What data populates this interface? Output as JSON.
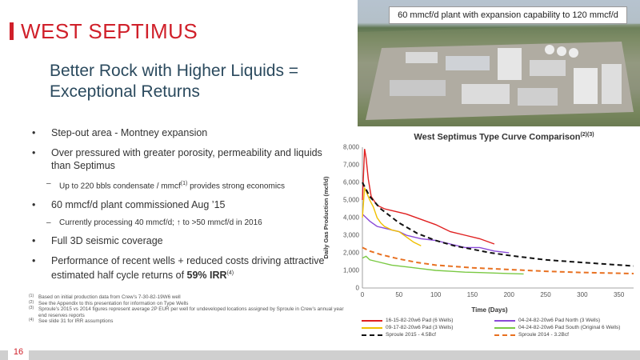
{
  "slide": {
    "title": "WEST SEPTIMUS",
    "subtitle": "Better Rock with Higher Liquids = Exceptional Returns",
    "page_number": "16",
    "accent_color": "#d0202a"
  },
  "photo": {
    "caption": "60 mmcf/d plant with expansion capability to 120 mmcf/d"
  },
  "bullets": {
    "b1": "Step-out area - Montney expansion",
    "b2": "Over pressured with greater porosity, permeability and liquids than Septimus",
    "b2_sub_pre": "Up to 220 bbls condensate / mmcf",
    "b2_sub_sup": "(1)",
    "b2_sub_post": " provides strong economics",
    "b3": "60 mmcf/d plant commissioned Aug ’15",
    "b3_sub": "Currently processing 40 mmcf/d; ↑ to >50 mmcf/d in 2016",
    "b4": "Full 3D seismic coverage",
    "b5_pre": "Performance of recent wells + reduced costs driving attractive estimated half cycle returns of ",
    "b5_bold": "59% IRR",
    "b5_sup": "(4)"
  },
  "footnotes": [
    {
      "n": "(1)",
      "text": "Based on initial production data from Crew’s 7-30-82-19W6 well"
    },
    {
      "n": "(2)",
      "text": "See the Appendix to this presentation for information on Type Wells"
    },
    {
      "n": "(3)",
      "text": "Sproule’s 2015 vs 2014 figures represent average 2P EUR per well for undeveloped locations assigned by Sproule in Crew’s annual year end reserves reports"
    },
    {
      "n": "(4)",
      "text": "See slide 31 for IRR assumptions"
    }
  ],
  "chart_data": {
    "type": "line",
    "title": "West Septimus Type Curve Comparison",
    "title_sup": "(2)(3)",
    "xlabel": "Time (Days)",
    "ylabel": "Daily Gas Production (mcf/d)",
    "xlim": [
      0,
      370
    ],
    "ylim": [
      0,
      8000
    ],
    "xticks": [
      "0",
      "50",
      "100",
      "150",
      "200",
      "250",
      "300",
      "350"
    ],
    "yticks": [
      "0",
      "1,000",
      "2,000",
      "3,000",
      "4,000",
      "5,000",
      "6,000",
      "7,000",
      "8,000"
    ],
    "grid": false,
    "legend_position": "bottom",
    "series": [
      {
        "name": "16-15-82-20w6 Pad (6 Wells)",
        "color": "#e02020",
        "style": "solid",
        "x": [
          0,
          3,
          5,
          8,
          12,
          20,
          30,
          40,
          60,
          80,
          100,
          120,
          140,
          160,
          180
        ],
        "y": [
          5000,
          7900,
          7400,
          6200,
          5200,
          4700,
          4500,
          4400,
          4200,
          3900,
          3600,
          3200,
          3000,
          2800,
          2500
        ]
      },
      {
        "name": "04-24-82-20w6 Pad North (3 Wells)",
        "color": "#8a4ad8",
        "style": "solid",
        "x": [
          0,
          5,
          10,
          20,
          30,
          40,
          50,
          60,
          80,
          100,
          120,
          140,
          160,
          180,
          200
        ],
        "y": [
          4200,
          4000,
          3800,
          3500,
          3400,
          3300,
          3200,
          3000,
          2800,
          2700,
          2500,
          2300,
          2300,
          2100,
          2000
        ]
      },
      {
        "name": "09-17-82-20w6 Pad (3 Wells)",
        "color": "#f0c000",
        "style": "solid",
        "x": [
          0,
          3,
          6,
          10,
          15,
          20,
          25,
          30,
          40,
          50,
          60,
          70,
          80
        ],
        "y": [
          4000,
          5700,
          5400,
          5000,
          4600,
          4000,
          3700,
          3500,
          3300,
          3200,
          2900,
          2600,
          2400
        ]
      },
      {
        "name": "04-24-82-20w6 Pad South (Original 6 Wells)",
        "color": "#7ac943",
        "style": "solid",
        "x": [
          0,
          5,
          10,
          20,
          40,
          60,
          80,
          100,
          120,
          140,
          160,
          180,
          200,
          220
        ],
        "y": [
          1700,
          1800,
          1600,
          1500,
          1300,
          1200,
          1100,
          1000,
          950,
          900,
          880,
          850,
          820,
          800
        ]
      },
      {
        "name": "Sproule 2015 - 4.5Bcf",
        "color": "#111111",
        "style": "dashed",
        "x": [
          0,
          10,
          25,
          50,
          75,
          100,
          125,
          150,
          175,
          200,
          250,
          300,
          370
        ],
        "y": [
          6000,
          5200,
          4500,
          3700,
          3100,
          2700,
          2400,
          2200,
          2000,
          1850,
          1600,
          1450,
          1250
        ]
      },
      {
        "name": "Sproule 2014 - 3.2Bcf",
        "color": "#e87020",
        "style": "dashed",
        "x": [
          0,
          10,
          25,
          50,
          75,
          100,
          150,
          200,
          250,
          300,
          370
        ],
        "y": [
          2300,
          2100,
          1900,
          1650,
          1450,
          1300,
          1150,
          1050,
          950,
          880,
          820
        ]
      }
    ]
  }
}
